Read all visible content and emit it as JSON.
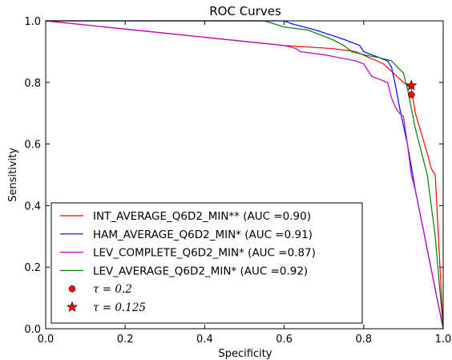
{
  "chart_data": {
    "type": "line",
    "title": "ROC Curves",
    "xlabel": "Specificity",
    "ylabel": "Sensitivity",
    "xlim": [
      0.0,
      1.0
    ],
    "ylim": [
      0.0,
      1.0
    ],
    "x_ticks": [
      "0.0",
      "0.2",
      "0.4",
      "0.6",
      "0.8",
      "1.0"
    ],
    "y_ticks": [
      "0.0",
      "0.2",
      "0.4",
      "0.6",
      "0.8",
      "1.0"
    ],
    "grid": false,
    "legend_position": "lower-left",
    "series": [
      {
        "name": "INT_AVERAGE_Q6D2_MIN** (AUC =0.90)",
        "color": "#ff0000",
        "x": [
          0.0,
          0.3,
          0.6,
          0.72,
          0.78,
          0.85,
          0.9,
          0.92,
          0.93,
          0.96,
          0.97,
          0.98,
          1.0
        ],
        "y": [
          1.0,
          0.96,
          0.92,
          0.91,
          0.9,
          0.86,
          0.8,
          0.78,
          0.7,
          0.57,
          0.52,
          0.5,
          0.0
        ]
      },
      {
        "name": "HAM_AVERAGE_Q6D2_MIN* (AUC =0.91)",
        "color": "#0000ff",
        "x": [
          0.0,
          0.2,
          0.4,
          0.6,
          0.62,
          0.68,
          0.75,
          0.79,
          0.8,
          0.82,
          0.84,
          0.86,
          0.87,
          0.88,
          0.89,
          0.91,
          0.93,
          1.0
        ],
        "y": [
          1.0,
          1.0,
          1.0,
          1.0,
          0.99,
          0.97,
          0.94,
          0.92,
          0.9,
          0.89,
          0.88,
          0.87,
          0.85,
          0.79,
          0.72,
          0.6,
          0.45,
          0.0
        ]
      },
      {
        "name": "LEV_COMPLETE_Q6D2_MIN* (AUC =0.87)",
        "color": "#bf00bf",
        "x": [
          0.0,
          0.3,
          0.6,
          0.63,
          0.64,
          0.7,
          0.74,
          0.78,
          0.8,
          0.81,
          0.82,
          0.84,
          0.86,
          0.87,
          0.88,
          0.89,
          0.9,
          0.91,
          0.92,
          0.93,
          1.0
        ],
        "y": [
          1.0,
          0.96,
          0.92,
          0.91,
          0.9,
          0.89,
          0.88,
          0.87,
          0.86,
          0.84,
          0.82,
          0.81,
          0.8,
          0.75,
          0.72,
          0.7,
          0.69,
          0.6,
          0.5,
          0.45,
          0.0
        ]
      },
      {
        "name": "LEV_AVERAGE_Q6D2_MIN* (AUC =0.92)",
        "color": "#008000",
        "x": [
          0.0,
          0.2,
          0.4,
          0.55,
          0.6,
          0.66,
          0.72,
          0.75,
          0.77,
          0.8,
          0.84,
          0.87,
          0.9,
          0.91,
          0.93,
          0.94,
          0.96,
          0.98,
          1.0
        ],
        "y": [
          1.0,
          1.0,
          1.0,
          1.0,
          0.98,
          0.97,
          0.94,
          0.92,
          0.9,
          0.89,
          0.88,
          0.87,
          0.83,
          0.78,
          0.65,
          0.6,
          0.5,
          0.3,
          0.0
        ]
      }
    ],
    "markers": [
      {
        "name": "τ = 0.2",
        "legend_label": "τ = 0.2",
        "shape": "circle",
        "color": "#ff0000",
        "x": 0.92,
        "y": 0.76
      },
      {
        "name": "τ = 0.125",
        "legend_label": "τ = 0.125",
        "shape": "star",
        "color": "#ff0000",
        "x": 0.92,
        "y": 0.79
      }
    ]
  }
}
